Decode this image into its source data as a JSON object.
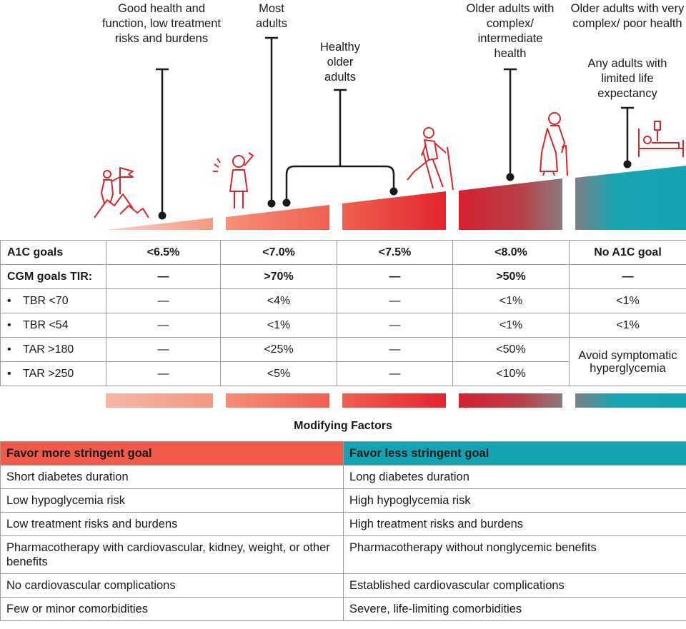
{
  "colors": {
    "red": "#e8383d",
    "coral": "#f0604f",
    "salmon": "#f59f8c",
    "teal": "#1aa4b2",
    "dark_red": "#c81f2d",
    "gray": "#888888",
    "header_red": "#f05a4a",
    "header_teal": "#14a3b3"
  },
  "labels": {
    "col1": "Good health and function, low treatment risks and burdens",
    "col2": "Most adults",
    "col3": "Healthy older adults",
    "col4": "Older adults with complex/ intermediate health",
    "col5a": "Older adults with very complex/ poor health",
    "col5b": "Any adults with limited life expectancy"
  },
  "icons": [
    "person-flag-icon",
    "waving-person-icon",
    "hiking-older-adult-icon",
    "older-adult-cane-icon",
    "hospital-bed-icon"
  ],
  "goals": {
    "a1c": {
      "label": "A1C goals",
      "values": [
        "<6.5%",
        "<7.0%",
        "<7.5%",
        "<8.0%",
        "No A1C goal"
      ]
    },
    "cgm": {
      "label": "CGM goals TIR:",
      "values": [
        "—",
        ">70%",
        "—",
        ">50%",
        "—"
      ]
    },
    "tbr70": {
      "label": "TBR <70",
      "values": [
        "—",
        "<4%",
        "—",
        "<1%",
        "<1%"
      ]
    },
    "tbr54": {
      "label": "TBR <54",
      "values": [
        "—",
        "<1%",
        "—",
        "<1%",
        "<1%"
      ]
    },
    "tar180": {
      "label": "TAR >180",
      "values": [
        "—",
        "<25%",
        "—",
        "<50%"
      ]
    },
    "tar250": {
      "label": "TAR >250",
      "values": [
        "—",
        "<5%",
        "—",
        "<10%"
      ]
    },
    "merged": "Avoid symptomatic hyperglycemia",
    "bullet": "•"
  },
  "modifying": {
    "title": "Modifying Factors",
    "left_header": "Favor more stringent goal",
    "right_header": "Favor less stringent goal",
    "rows": [
      [
        "Short diabetes duration",
        "Long diabetes duration"
      ],
      [
        "Low hypoglycemia risk",
        "High hypoglycemia risk"
      ],
      [
        "Low treatment risks and burdens",
        "High treatment risks and burdens"
      ],
      [
        "Pharmacotherapy with cardiovascular, kidney, weight, or other benefits",
        "Pharmacotherapy without nonglycemic benefits"
      ],
      [
        "No cardiovascular complications",
        "Established cardiovascular complications"
      ],
      [
        "Few or minor comorbidities",
        "Severe, life-limiting comorbidities"
      ]
    ]
  }
}
